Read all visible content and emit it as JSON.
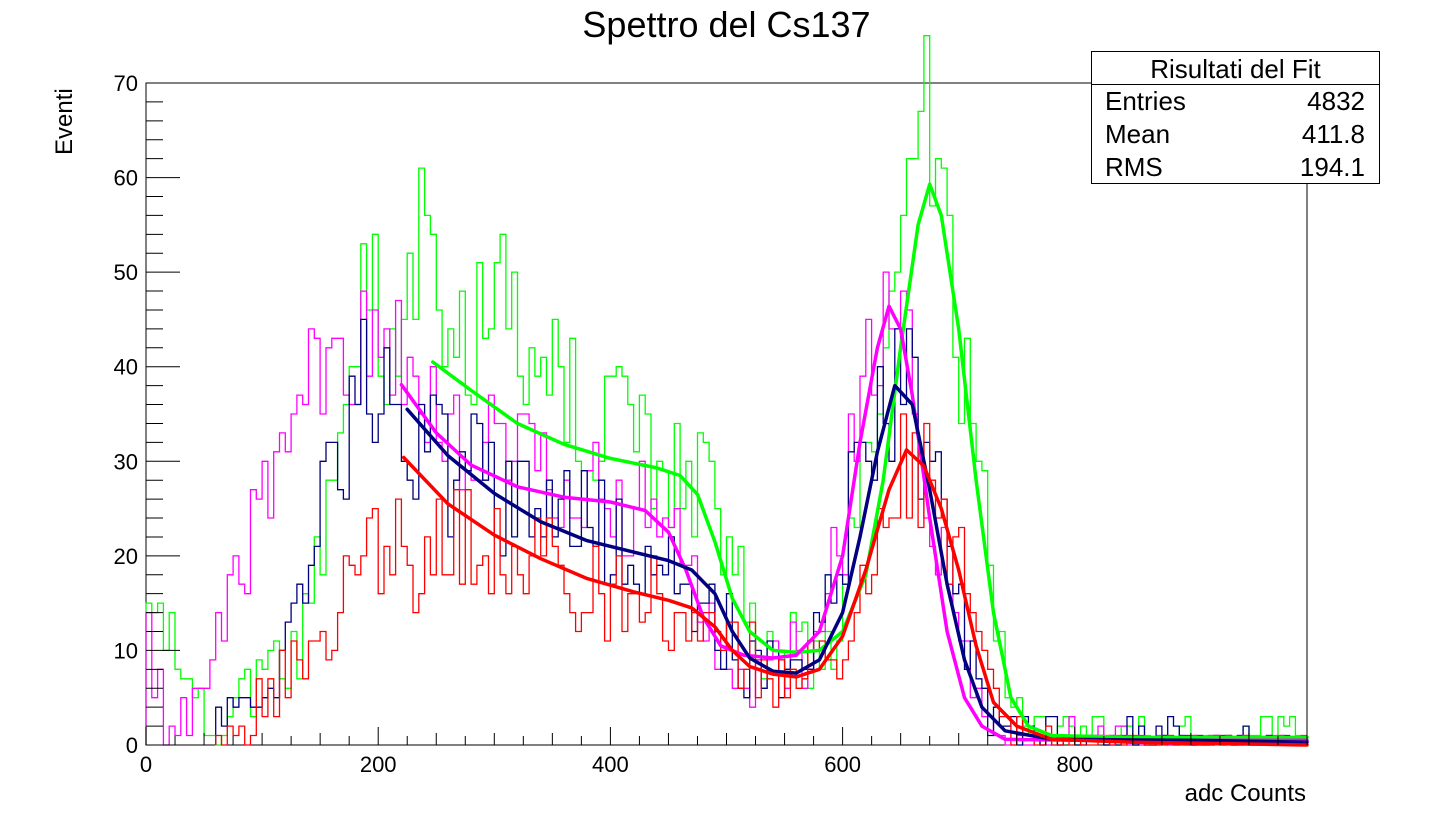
{
  "page": {
    "background": "#ffffff"
  },
  "chart_data": {
    "type": "line",
    "title": "Spettro del Cs137",
    "xlabel": "adc Counts",
    "ylabel": "Eventi",
    "xlim": [
      0,
      1000
    ],
    "ylim": [
      0,
      70
    ],
    "x_ticks": [
      0,
      200,
      400,
      600,
      800
    ],
    "y_ticks": [
      0,
      10,
      20,
      30,
      40,
      50,
      60,
      70
    ],
    "grid": false,
    "histogram_bin_width": 5,
    "series": [
      {
        "color": "#00ff00",
        "histogram_envelope": [
          [
            0,
            15
          ],
          [
            60,
            0
          ],
          [
            90,
            6
          ],
          [
            130,
            9
          ],
          [
            170,
            32
          ],
          [
            185,
            50
          ],
          [
            200,
            46
          ],
          [
            215,
            42
          ],
          [
            230,
            52
          ],
          [
            240,
            59
          ],
          [
            255,
            40
          ],
          [
            280,
            44
          ],
          [
            310,
            46
          ],
          [
            340,
            40
          ],
          [
            380,
            36
          ],
          [
            420,
            33
          ],
          [
            440,
            30
          ],
          [
            460,
            30
          ],
          [
            480,
            27
          ],
          [
            500,
            22
          ],
          [
            520,
            13
          ],
          [
            540,
            10
          ],
          [
            560,
            10
          ],
          [
            580,
            9
          ],
          [
            600,
            13
          ],
          [
            620,
            28
          ],
          [
            640,
            45
          ],
          [
            660,
            60
          ],
          [
            670,
            67
          ],
          [
            680,
            62
          ],
          [
            690,
            55
          ],
          [
            700,
            45
          ],
          [
            720,
            25
          ],
          [
            740,
            8
          ],
          [
            760,
            2
          ],
          [
            800,
            1
          ],
          [
            900,
            1
          ],
          [
            1000,
            1
          ]
        ],
        "fit_curve": [
          [
            247,
            40.5
          ],
          [
            280,
            37.5
          ],
          [
            320,
            34.0
          ],
          [
            360,
            31.8
          ],
          [
            400,
            30.3
          ],
          [
            440,
            29.3
          ],
          [
            460,
            28.5
          ],
          [
            475,
            26.5
          ],
          [
            490,
            21.5
          ],
          [
            505,
            15.5
          ],
          [
            520,
            12.0
          ],
          [
            540,
            10.0
          ],
          [
            560,
            9.8
          ],
          [
            580,
            10.0
          ],
          [
            600,
            12.0
          ],
          [
            620,
            18.0
          ],
          [
            635,
            28.0
          ],
          [
            650,
            42.0
          ],
          [
            665,
            55.0
          ],
          [
            675,
            59.3
          ],
          [
            685,
            56.0
          ],
          [
            700,
            44.0
          ],
          [
            715,
            28.0
          ],
          [
            730,
            14.0
          ],
          [
            745,
            5.0
          ],
          [
            760,
            2.0
          ],
          [
            780,
            1.0
          ],
          [
            850,
            0.8
          ],
          [
            1000,
            0.8
          ]
        ]
      },
      {
        "color": "#ff00ff",
        "histogram_envelope": [
          [
            0,
            13
          ],
          [
            20,
            0
          ],
          [
            60,
            8
          ],
          [
            80,
            19
          ],
          [
            100,
            25
          ],
          [
            120,
            28
          ],
          [
            140,
            36
          ],
          [
            155,
            41
          ],
          [
            170,
            38
          ],
          [
            190,
            40
          ],
          [
            210,
            39
          ],
          [
            240,
            39
          ],
          [
            280,
            33
          ],
          [
            320,
            29
          ],
          [
            360,
            27
          ],
          [
            400,
            26
          ],
          [
            440,
            24
          ],
          [
            460,
            20
          ],
          [
            480,
            13
          ],
          [
            500,
            9
          ],
          [
            520,
            5
          ],
          [
            540,
            8
          ],
          [
            560,
            9
          ],
          [
            580,
            11
          ],
          [
            600,
            22
          ],
          [
            620,
            39
          ],
          [
            640,
            50
          ],
          [
            660,
            40
          ],
          [
            680,
            23
          ],
          [
            700,
            10
          ],
          [
            720,
            4
          ],
          [
            740,
            1
          ],
          [
            800,
            1
          ],
          [
            900,
            0
          ],
          [
            1000,
            0
          ]
        ],
        "fit_curve": [
          [
            220,
            38.1
          ],
          [
            250,
            33.0
          ],
          [
            280,
            29.6
          ],
          [
            320,
            27.3
          ],
          [
            360,
            26.2
          ],
          [
            400,
            25.7
          ],
          [
            430,
            24.8
          ],
          [
            450,
            22.5
          ],
          [
            465,
            18.5
          ],
          [
            480,
            13.5
          ],
          [
            495,
            10.5
          ],
          [
            515,
            9.5
          ],
          [
            540,
            9.2
          ],
          [
            560,
            9.5
          ],
          [
            580,
            12.0
          ],
          [
            600,
            20.0
          ],
          [
            615,
            32.0
          ],
          [
            630,
            42.0
          ],
          [
            640,
            46.4
          ],
          [
            650,
            44.0
          ],
          [
            660,
            37.0
          ],
          [
            675,
            24.0
          ],
          [
            690,
            12.0
          ],
          [
            705,
            5.0
          ],
          [
            720,
            2.0
          ],
          [
            740,
            0.6
          ],
          [
            800,
            0.5
          ],
          [
            1000,
            0.5
          ]
        ]
      },
      {
        "color": "#000080",
        "histogram_envelope": [
          [
            60,
            2
          ],
          [
            100,
            7
          ],
          [
            130,
            12
          ],
          [
            150,
            26
          ],
          [
            170,
            30
          ],
          [
            190,
            38
          ],
          [
            210,
            41
          ],
          [
            230,
            32
          ],
          [
            260,
            29
          ],
          [
            300,
            27
          ],
          [
            340,
            26
          ],
          [
            380,
            24
          ],
          [
            420,
            21
          ],
          [
            450,
            17
          ],
          [
            480,
            14
          ],
          [
            500,
            12
          ],
          [
            520,
            8
          ],
          [
            540,
            7
          ],
          [
            560,
            9
          ],
          [
            580,
            13
          ],
          [
            600,
            22
          ],
          [
            620,
            30
          ],
          [
            640,
            38
          ],
          [
            660,
            36
          ],
          [
            680,
            26
          ],
          [
            700,
            16
          ],
          [
            720,
            6
          ],
          [
            740,
            2
          ],
          [
            780,
            1
          ],
          [
            900,
            1
          ],
          [
            1000,
            0
          ]
        ],
        "fit_curve": [
          [
            225,
            35.5
          ],
          [
            260,
            30.6
          ],
          [
            300,
            26.6
          ],
          [
            340,
            23.6
          ],
          [
            380,
            21.6
          ],
          [
            420,
            20.4
          ],
          [
            450,
            19.5
          ],
          [
            470,
            18.5
          ],
          [
            490,
            16.0
          ],
          [
            505,
            12.0
          ],
          [
            520,
            9.2
          ],
          [
            540,
            7.8
          ],
          [
            560,
            7.6
          ],
          [
            580,
            9.0
          ],
          [
            600,
            14.0
          ],
          [
            615,
            22.0
          ],
          [
            630,
            31.0
          ],
          [
            645,
            38.0
          ],
          [
            660,
            36.0
          ],
          [
            675,
            27.0
          ],
          [
            690,
            17.0
          ],
          [
            705,
            9.0
          ],
          [
            720,
            4.0
          ],
          [
            740,
            1.5
          ],
          [
            780,
            0.6
          ],
          [
            900,
            0.5
          ],
          [
            1000,
            0.3
          ]
        ]
      },
      {
        "color": "#ff0000",
        "histogram_envelope": [
          [
            60,
            0
          ],
          [
            80,
            2
          ],
          [
            110,
            6
          ],
          [
            140,
            10
          ],
          [
            170,
            17
          ],
          [
            190,
            22
          ],
          [
            210,
            22
          ],
          [
            230,
            19
          ],
          [
            260,
            24
          ],
          [
            300,
            22
          ],
          [
            340,
            20
          ],
          [
            380,
            17
          ],
          [
            420,
            16
          ],
          [
            460,
            14
          ],
          [
            490,
            12
          ],
          [
            520,
            10
          ],
          [
            540,
            8
          ],
          [
            560,
            6
          ],
          [
            580,
            8
          ],
          [
            600,
            11
          ],
          [
            620,
            15
          ],
          [
            640,
            23
          ],
          [
            660,
            31
          ],
          [
            680,
            25
          ],
          [
            700,
            19
          ],
          [
            720,
            12
          ],
          [
            740,
            4
          ],
          [
            760,
            1
          ],
          [
            800,
            0
          ],
          [
            1000,
            0
          ]
        ],
        "fit_curve": [
          [
            222,
            30.4
          ],
          [
            260,
            25.5
          ],
          [
            300,
            22.2
          ],
          [
            340,
            19.7
          ],
          [
            380,
            17.6
          ],
          [
            420,
            16.2
          ],
          [
            450,
            15.3
          ],
          [
            470,
            14.5
          ],
          [
            490,
            12.5
          ],
          [
            505,
            10.0
          ],
          [
            520,
            8.3
          ],
          [
            540,
            7.5
          ],
          [
            560,
            7.2
          ],
          [
            580,
            8.0
          ],
          [
            600,
            11.5
          ],
          [
            620,
            18.5
          ],
          [
            640,
            27.0
          ],
          [
            655,
            31.2
          ],
          [
            670,
            29.5
          ],
          [
            685,
            25.0
          ],
          [
            700,
            18.5
          ],
          [
            715,
            10.5
          ],
          [
            730,
            4.5
          ],
          [
            750,
            2.0
          ],
          [
            780,
            0.6
          ],
          [
            850,
            0.3
          ],
          [
            1000,
            0.0
          ]
        ]
      }
    ]
  },
  "stats": {
    "title": "Risultati del Fit",
    "rows": [
      {
        "name": "Entries",
        "value": "4832"
      },
      {
        "name": "Mean",
        "value": "411.8"
      },
      {
        "name": "RMS",
        "value": "194.1"
      }
    ]
  }
}
